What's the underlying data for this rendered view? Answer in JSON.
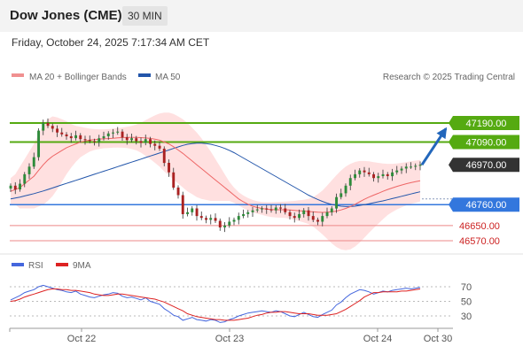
{
  "header": {
    "title": "Dow Jones (CME)",
    "timeframe": "30 MIN"
  },
  "datetime": "Friday, October 24, 2025 7:17:34 AM CET",
  "legend": {
    "ma20_label": "MA 20 + Bollinger Bands",
    "ma50_label": "MA 50",
    "copyright": "Research © 2025 Trading Central",
    "rsi_label": "RSI",
    "rsi_ma_label": "9MA"
  },
  "colors": {
    "resistance": "#55aa11",
    "support": "#3377dd",
    "target_low": "#ee8888",
    "ma20": "#ee6666",
    "ma50": "#2255aa",
    "bands": "#ffdddd",
    "current": "#333333",
    "arrow": "#2266bb",
    "rsi": "#4466dd",
    "rsi_ma": "#dd2222"
  },
  "chart_data": [
    {
      "type": "candlestick",
      "price_range": [
        46535,
        47290
      ],
      "levels": [
        {
          "label": "47190.00",
          "value": 47190,
          "kind": "resistance"
        },
        {
          "label": "47090.00",
          "value": 47090,
          "kind": "resistance"
        },
        {
          "label": "46970.00",
          "value": 46970,
          "kind": "current"
        },
        {
          "label": "46760.00",
          "value": 46760,
          "kind": "support"
        },
        {
          "label": "46650.00",
          "value": 46650,
          "kind": "target"
        },
        {
          "label": "46570.00",
          "value": 46570,
          "kind": "target"
        }
      ],
      "forecast_arrow": {
        "from": 46970,
        "to": 47160,
        "direction": "up"
      },
      "series": [
        {
          "key": "close",
          "values": [
            46860,
            46840,
            46870,
            46920,
            46960,
            47010,
            47150,
            47190,
            47175,
            47160,
            47140,
            47130,
            47120,
            47110,
            47125,
            47105,
            47100,
            47095,
            47090,
            47110,
            47120,
            47135,
            47140,
            47145,
            47115,
            47100,
            47110,
            47095,
            47085,
            47105,
            47080,
            47070,
            47055,
            46980,
            46930,
            46850,
            46810,
            46710,
            46720,
            46740,
            46700,
            46690,
            46680,
            46690,
            46675,
            46640,
            46650,
            46670,
            46680,
            46700,
            46710,
            46720,
            46730,
            46735,
            46740,
            46735,
            46730,
            46745,
            46740,
            46720,
            46700,
            46690,
            46710,
            46730,
            46700,
            46680,
            46670,
            46700,
            46720,
            46740,
            46800,
            46820,
            46860,
            46900,
            46920,
            46940,
            46930,
            46920,
            46900,
            46910,
            46920,
            46910,
            46930,
            46940,
            46950,
            46960,
            46960,
            46965,
            46970
          ]
        },
        {
          "key": "ma20",
          "values": [
            46830,
            46840,
            46850,
            46870,
            46890,
            46910,
            46940,
            46970,
            46995,
            47015,
            47030,
            47045,
            47060,
            47070,
            47080,
            47090,
            47095,
            47100,
            47103,
            47105,
            47107,
            47108,
            47110,
            47112,
            47113,
            47114,
            47114,
            47114,
            47113,
            47111,
            47109,
            47105,
            47100,
            47090,
            47080,
            47065,
            47048,
            47030,
            47010,
            46990,
            46970,
            46950,
            46930,
            46910,
            46890,
            46870,
            46850,
            46830,
            46810,
            46790,
            46775,
            46762,
            46752,
            46745,
            46740,
            46736,
            46734,
            46733,
            46733,
            46733,
            46732,
            46730,
            46728,
            46726,
            46724,
            46722,
            46720,
            46719,
            46720,
            46722,
            46726,
            46732,
            46740,
            46750,
            46762,
            46775,
            46788,
            46800,
            46810,
            46820,
            46830,
            46840,
            46848,
            46856,
            46863,
            46870,
            46876,
            46881,
            46886
          ]
        },
        {
          "key": "bb_upper",
          "values": [
            46900,
            46920,
            46960,
            47000,
            47040,
            47080,
            47130,
            47180,
            47210,
            47225,
            47220,
            47210,
            47200,
            47185,
            47175,
            47170,
            47165,
            47160,
            47158,
            47157,
            47157,
            47158,
            47160,
            47163,
            47166,
            47170,
            47175,
            47182,
            47192,
            47205,
            47218,
            47230,
            47240,
            47245,
            47245,
            47238,
            47225,
            47210,
            47190,
            47165,
            47140,
            47110,
            47075,
            47040,
            47000,
            46960,
            46920,
            46880,
            46850,
            46825,
            46808,
            46795,
            46785,
            46778,
            46774,
            46773,
            46773,
            46774,
            46775,
            46776,
            46778,
            46780,
            46783,
            46786,
            46790,
            46800,
            46815,
            46835,
            46860,
            46888,
            46915,
            46940,
            46960,
            46975,
            46985,
            46990,
            46990,
            46988,
            46984,
            46980,
            46977,
            46975,
            46975,
            46977,
            46980,
            46984,
            46988,
            46992,
            46995
          ]
        },
        {
          "key": "bb_lower",
          "values": [
            46760,
            46760,
            46740,
            46740,
            46740,
            46740,
            46750,
            46760,
            46780,
            46805,
            46840,
            46880,
            46920,
            46955,
            46985,
            47010,
            47025,
            47040,
            47048,
            47053,
            47057,
            47058,
            47060,
            47061,
            47060,
            47058,
            47053,
            47046,
            47034,
            47017,
            47000,
            46980,
            46960,
            46935,
            46915,
            46892,
            46871,
            46850,
            46830,
            46815,
            46800,
            46790,
            46785,
            46780,
            46780,
            46780,
            46780,
            46780,
            46770,
            46755,
            46742,
            46729,
            46719,
            46712,
            46706,
            46699,
            46695,
            46692,
            46691,
            46690,
            46686,
            46680,
            46673,
            46666,
            46658,
            46644,
            46625,
            46603,
            46580,
            46556,
            46537,
            46524,
            46520,
            46525,
            46539,
            46560,
            46586,
            46612,
            46636,
            46660,
            46683,
            46705,
            46721,
            46735,
            46746,
            46756,
            46764,
            46770,
            46777
          ]
        },
        {
          "key": "ma50",
          "values": [
            46790,
            46795,
            46800,
            46806,
            46812,
            46818,
            46825,
            46832,
            46840,
            46848,
            46856,
            46864,
            46872,
            46880,
            46888,
            46896,
            46904,
            46912,
            46920,
            46928,
            46936,
            46944,
            46952,
            46960,
            46968,
            46976,
            46984,
            46992,
            47000,
            47008,
            47016,
            47024,
            47032,
            47040,
            47048,
            47056,
            47064,
            47072,
            47078,
            47082,
            47084,
            47084,
            47082,
            47078,
            47072,
            47065,
            47056,
            47046,
            47034,
            47020,
            47006,
            46992,
            46978,
            46964,
            46950,
            46936,
            46922,
            46908,
            46894,
            46880,
            46866,
            46852,
            46838,
            46824,
            46810,
            46798,
            46787,
            46777,
            46768,
            46761,
            46756,
            46752,
            46750,
            46750,
            46752,
            46756,
            46760,
            46765,
            46770,
            46775,
            46780,
            46786,
            46792,
            46798,
            46804,
            46810,
            46816,
            46822,
            46828
          ]
        }
      ]
    },
    {
      "type": "line",
      "ylim": [
        0,
        100
      ],
      "y_ticks": [
        "70",
        "50",
        "30"
      ],
      "series": [
        {
          "name": "RSI",
          "values": [
            52,
            55,
            58,
            62,
            64,
            66,
            70,
            72,
            70,
            68,
            66,
            65,
            63,
            62,
            64,
            60,
            58,
            56,
            55,
            57,
            59,
            60,
            62,
            61,
            57,
            55,
            56,
            54,
            52,
            55,
            50,
            48,
            46,
            40,
            36,
            31,
            29,
            24,
            26,
            28,
            25,
            24,
            23,
            25,
            24,
            21,
            22,
            25,
            27,
            30,
            32,
            34,
            35,
            36,
            37,
            36,
            35,
            37,
            36,
            33,
            30,
            29,
            32,
            35,
            32,
            29,
            28,
            32,
            35,
            38,
            45,
            49,
            55,
            60,
            63,
            66,
            65,
            63,
            60,
            62,
            64,
            63,
            65,
            66,
            67,
            68,
            67,
            68,
            69
          ]
        },
        {
          "name": "9MA",
          "values": [
            50,
            51,
            53,
            56,
            58,
            60,
            62,
            64,
            66,
            67,
            67,
            66,
            66,
            65,
            65,
            64,
            63,
            62,
            60,
            59,
            58,
            58,
            59,
            60,
            60,
            59,
            58,
            57,
            56,
            55,
            54,
            53,
            51,
            49,
            46,
            43,
            40,
            37,
            33,
            31,
            29,
            28,
            27,
            26,
            25,
            25,
            24,
            24,
            24,
            25,
            26,
            27,
            29,
            31,
            32,
            34,
            35,
            35,
            36,
            36,
            35,
            34,
            33,
            33,
            33,
            32,
            31,
            31,
            31,
            32,
            33,
            36,
            39,
            43,
            47,
            51,
            56,
            59,
            62,
            62,
            63,
            63,
            63,
            63,
            64,
            64,
            65,
            66,
            67
          ]
        }
      ]
    }
  ],
  "x_axis": {
    "labels": [
      "Oct 22",
      "Oct 23",
      "Oct 24",
      "Oct 30"
    ]
  }
}
